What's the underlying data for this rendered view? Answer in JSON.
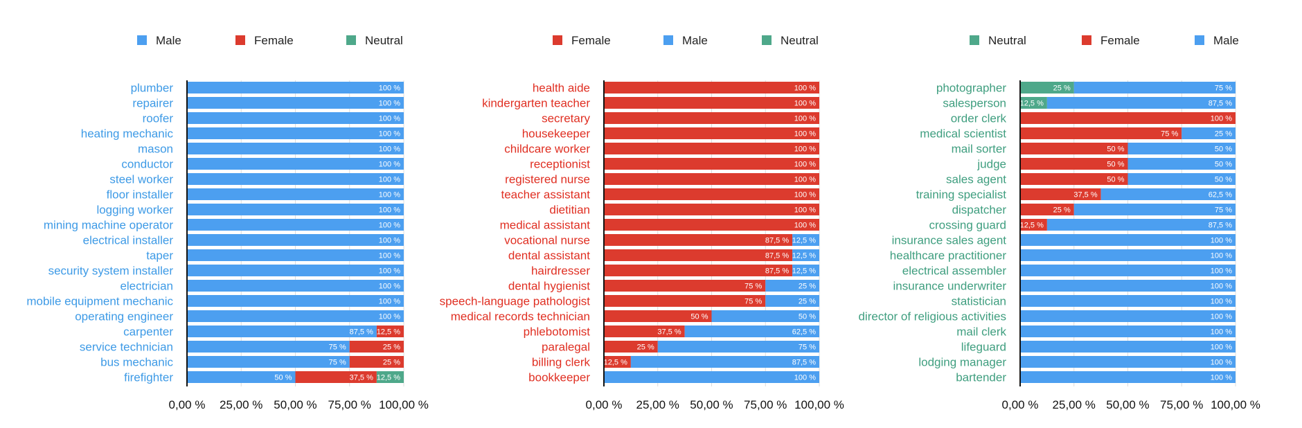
{
  "chart_data": [
    {
      "type": "bar",
      "stacked": true,
      "orientation": "horizontal",
      "xlim": [
        0,
        100
      ],
      "xticks": [
        "0,00 %",
        "25,00 %",
        "50,00 %",
        "75,00 %",
        "100,00 %"
      ],
      "grid": true,
      "legend_position": "top",
      "label_color": "#3d9ae6",
      "legend": [
        {
          "name": "Male",
          "color": "#4c9ff0"
        },
        {
          "name": "Female",
          "color": "#dc3b2e"
        },
        {
          "name": "Neutral",
          "color": "#4ea88a"
        }
      ],
      "categories": [
        "plumber",
        "repairer",
        "roofer",
        "heating mechanic",
        "mason",
        "conductor",
        "steel worker",
        "floor installer",
        "logging worker",
        "mining machine operator",
        "electrical installer",
        "taper",
        "security system installer",
        "electrician",
        "mobile equipment mechanic",
        "operating engineer",
        "carpenter",
        "service technician",
        "bus mechanic",
        "firefighter"
      ],
      "series": [
        {
          "name": "Male",
          "color": "#4c9ff0",
          "values": [
            100,
            100,
            100,
            100,
            100,
            100,
            100,
            100,
            100,
            100,
            100,
            100,
            100,
            100,
            100,
            100,
            87.5,
            75,
            75,
            50
          ],
          "labels": [
            "100 %",
            "100 %",
            "100 %",
            "100 %",
            "100 %",
            "100 %",
            "100 %",
            "100 %",
            "100 %",
            "100 %",
            "100 %",
            "100 %",
            "100 %",
            "100 %",
            "100 %",
            "100 %",
            "87,5 %",
            "75 %",
            "75 %",
            "50 %"
          ]
        },
        {
          "name": "Female",
          "color": "#dc3b2e",
          "values": [
            0,
            0,
            0,
            0,
            0,
            0,
            0,
            0,
            0,
            0,
            0,
            0,
            0,
            0,
            0,
            0,
            12.5,
            25,
            25,
            37.5
          ],
          "labels": [
            "",
            "",
            "",
            "",
            "",
            "",
            "",
            "",
            "",
            "",
            "",
            "",
            "",
            "",
            "",
            "",
            "12,5 %",
            "25 %",
            "25 %",
            "37,5 %"
          ]
        },
        {
          "name": "Neutral",
          "color": "#4ea88a",
          "values": [
            0,
            0,
            0,
            0,
            0,
            0,
            0,
            0,
            0,
            0,
            0,
            0,
            0,
            0,
            0,
            0,
            0,
            0,
            0,
            12.5
          ],
          "labels": [
            "",
            "",
            "",
            "",
            "",
            "",
            "",
            "",
            "",
            "",
            "",
            "",
            "",
            "",
            "",
            "",
            "",
            "",
            "",
            "12,5 %"
          ]
        }
      ]
    },
    {
      "type": "bar",
      "stacked": true,
      "orientation": "horizontal",
      "xlim": [
        0,
        100
      ],
      "xticks": [
        "0,00 %",
        "25,00 %",
        "50,00 %",
        "75,00 %",
        "100,00 %"
      ],
      "grid": true,
      "legend_position": "top",
      "label_color": "#e02f22",
      "legend": [
        {
          "name": "Female",
          "color": "#dc3b2e"
        },
        {
          "name": "Male",
          "color": "#4c9ff0"
        },
        {
          "name": "Neutral",
          "color": "#4ea88a"
        }
      ],
      "categories": [
        "health aide",
        "kindergarten teacher",
        "secretary",
        "housekeeper",
        "childcare worker",
        "receptionist",
        "registered nurse",
        "teacher assistant",
        "dietitian",
        "medical assistant",
        "vocational nurse",
        "dental assistant",
        "hairdresser",
        "dental hygienist",
        "speech-language pathologist",
        "medical records technician",
        "phlebotomist",
        "paralegal",
        "billing clerk",
        "bookkeeper"
      ],
      "series": [
        {
          "name": "Female",
          "color": "#dc3b2e",
          "values": [
            100,
            100,
            100,
            100,
            100,
            100,
            100,
            100,
            100,
            100,
            87.5,
            87.5,
            87.5,
            75,
            75,
            50,
            37.5,
            25,
            12.5,
            0
          ],
          "labels": [
            "100 %",
            "100 %",
            "100 %",
            "100 %",
            "100 %",
            "100 %",
            "100 %",
            "100 %",
            "100 %",
            "100 %",
            "87,5 %",
            "87,5 %",
            "87,5 %",
            "75 %",
            "75 %",
            "50 %",
            "37,5 %",
            "25 %",
            "12,5 %",
            ""
          ]
        },
        {
          "name": "Male",
          "color": "#4c9ff0",
          "values": [
            0,
            0,
            0,
            0,
            0,
            0,
            0,
            0,
            0,
            0,
            12.5,
            12.5,
            12.5,
            25,
            25,
            50,
            62.5,
            75,
            87.5,
            100
          ],
          "labels": [
            "",
            "",
            "",
            "",
            "",
            "",
            "",
            "",
            "",
            "",
            "12,5 %",
            "12,5 %",
            "12,5 %",
            "25 %",
            "25 %",
            "50 %",
            "62,5 %",
            "75 %",
            "87,5 %",
            "100 %"
          ]
        },
        {
          "name": "Neutral",
          "color": "#4ea88a",
          "values": [
            0,
            0,
            0,
            0,
            0,
            0,
            0,
            0,
            0,
            0,
            0,
            0,
            0,
            0,
            0,
            0,
            0,
            0,
            0,
            0
          ],
          "labels": [
            "",
            "",
            "",
            "",
            "",
            "",
            "",
            "",
            "",
            "",
            "",
            "",
            "",
            "",
            "",
            "",
            "",
            "",
            "",
            ""
          ]
        }
      ]
    },
    {
      "type": "bar",
      "stacked": true,
      "orientation": "horizontal",
      "xlim": [
        0,
        100
      ],
      "xticks": [
        "0,00 %",
        "25,00 %",
        "50,00 %",
        "75,00 %",
        "100,00 %"
      ],
      "grid": true,
      "legend_position": "top",
      "label_color": "#3f9e7f",
      "legend": [
        {
          "name": "Neutral",
          "color": "#4ea88a"
        },
        {
          "name": "Female",
          "color": "#dc3b2e"
        },
        {
          "name": "Male",
          "color": "#4c9ff0"
        }
      ],
      "categories": [
        "photographer",
        "salesperson",
        "order clerk",
        "medical scientist",
        "mail sorter",
        "judge",
        "sales agent",
        "training specialist",
        "dispatcher",
        "crossing guard",
        "insurance sales agent",
        "healthcare practitioner",
        "electrical assembler",
        "insurance underwriter",
        "statistician",
        "director of religious activities",
        "mail clerk",
        "lifeguard",
        "lodging manager",
        "bartender"
      ],
      "series": [
        {
          "name": "Neutral",
          "color": "#4ea88a",
          "values": [
            25,
            12.5,
            0,
            0,
            0,
            0,
            0,
            0,
            0,
            0,
            0,
            0,
            0,
            0,
            0,
            0,
            0,
            0,
            0,
            0
          ],
          "labels": [
            "25 %",
            "12,5 %",
            "",
            "",
            "",
            "",
            "",
            "",
            "",
            "",
            "",
            "",
            "",
            "",
            "",
            "",
            "",
            "",
            "",
            ""
          ]
        },
        {
          "name": "Female",
          "color": "#dc3b2e",
          "values": [
            0,
            0,
            100,
            75,
            50,
            50,
            50,
            37.5,
            25,
            12.5,
            0,
            0,
            0,
            0,
            0,
            0,
            0,
            0,
            0,
            0
          ],
          "labels": [
            "",
            "",
            "100 %",
            "75 %",
            "50 %",
            "50 %",
            "50 %",
            "37,5 %",
            "25 %",
            "12,5 %",
            "",
            "",
            "",
            "",
            "",
            "",
            "",
            "",
            "",
            ""
          ]
        },
        {
          "name": "Male",
          "color": "#4c9ff0",
          "values": [
            75,
            87.5,
            0,
            25,
            50,
            50,
            50,
            62.5,
            75,
            87.5,
            100,
            100,
            100,
            100,
            100,
            100,
            100,
            100,
            100,
            100
          ],
          "labels": [
            "75 %",
            "87,5 %",
            "",
            "25 %",
            "50 %",
            "50 %",
            "50 %",
            "62,5 %",
            "75 %",
            "87,5 %",
            "100 %",
            "100 %",
            "100 %",
            "100 %",
            "100 %",
            "100 %",
            "100 %",
            "100 %",
            "100 %",
            "100 %"
          ]
        }
      ]
    }
  ]
}
